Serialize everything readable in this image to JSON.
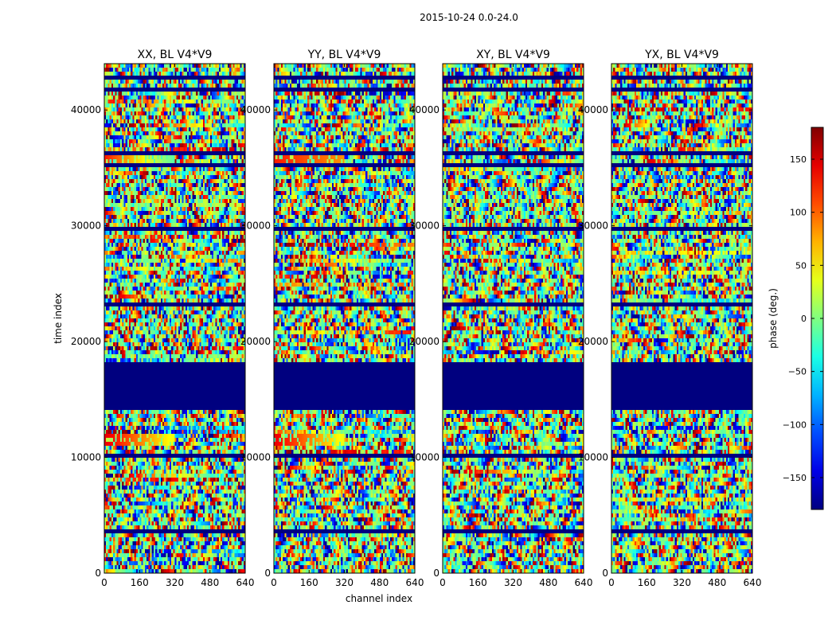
{
  "figure_title": "2015-10-24 0.0-24.0",
  "chart_data": {
    "type": "heatmap",
    "title": "2015-10-24 0.0-24.0",
    "xlabel": "channel index",
    "ylabel": "time index",
    "xlim": [
      0,
      640
    ],
    "ylim": [
      0,
      44000
    ],
    "xticks": [
      0,
      160,
      320,
      480,
      640
    ],
    "yticks": [
      0,
      10000,
      20000,
      30000,
      40000
    ],
    "panels": [
      {
        "title": "XX, BL V4*V9",
        "polarization": "XX"
      },
      {
        "title": "YY, BL V4*V9",
        "polarization": "YY"
      },
      {
        "title": "XY, BL V4*V9",
        "polarization": "XY"
      },
      {
        "title": "YX, BL V4*V9",
        "polarization": "YX"
      }
    ],
    "flagged_time_range": [
      14500,
      18000
    ],
    "colorbar": {
      "label": "phase (deg.)",
      "range": [
        -180,
        180
      ],
      "ticks": [
        -150,
        -100,
        -50,
        0,
        50,
        100,
        150
      ],
      "colormap": "jet",
      "flag_color": "#00007f"
    }
  }
}
